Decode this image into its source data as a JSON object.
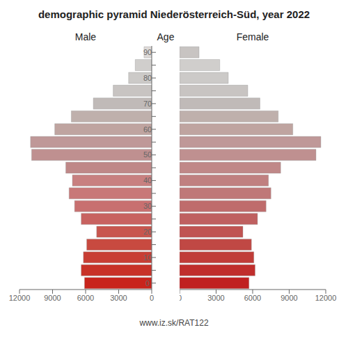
{
  "chart_data": {
    "type": "bar",
    "orientation": "horizontal",
    "title": "demographic pyramid Niederösterreich-Süd, year 2022",
    "ylabel": "Age",
    "annotations": [
      "www.iz.sk/RAT122"
    ],
    "categories": [
      "0",
      null,
      "10",
      null,
      "20",
      null,
      "30",
      null,
      "40",
      null,
      "50",
      null,
      "60",
      null,
      "70",
      null,
      "80",
      null,
      "90"
    ],
    "series": [
      {
        "name": "Male",
        "values": [
          6100,
          6400,
          6200,
          5900,
          5000,
          6400,
          7000,
          7500,
          7200,
          7800,
          10900,
          11000,
          8800,
          7300,
          5300,
          3500,
          2100,
          1500,
          700
        ],
        "colors": [
          "#c8241c",
          "#c83228",
          "#c83e34",
          "#c84a40",
          "#c8564e",
          "#c86260",
          "#c87070",
          "#c87878",
          "#c88080",
          "#bf8888",
          "#bf9090",
          "#bf9898",
          "#bfa4a0",
          "#bfb0ac",
          "#c0bab8",
          "#c8c4c2",
          "#cccac8",
          "#d0cecc",
          "#dedad8"
        ]
      },
      {
        "name": "Female",
        "values": [
          5700,
          6200,
          6100,
          5900,
          5200,
          6400,
          7100,
          7500,
          7300,
          8300,
          11200,
          11600,
          9300,
          8100,
          6600,
          5600,
          4000,
          3300,
          1600
        ],
        "colors": [
          "#c02020",
          "#c02e2c",
          "#c03c38",
          "#c04844",
          "#c05452",
          "#bf6060",
          "#bf6c6c",
          "#bf7878",
          "#c08080",
          "#c08888",
          "#bf9090",
          "#bf9898",
          "#bfa4a0",
          "#bfb0ac",
          "#c0bab8",
          "#c8c4c2",
          "#cccac8",
          "#d0cecc",
          "#c8c4c2"
        ]
      }
    ],
    "xlim": [
      0,
      12000
    ],
    "xticks": [
      0,
      3000,
      6000,
      9000,
      12000
    ],
    "grid": false
  }
}
